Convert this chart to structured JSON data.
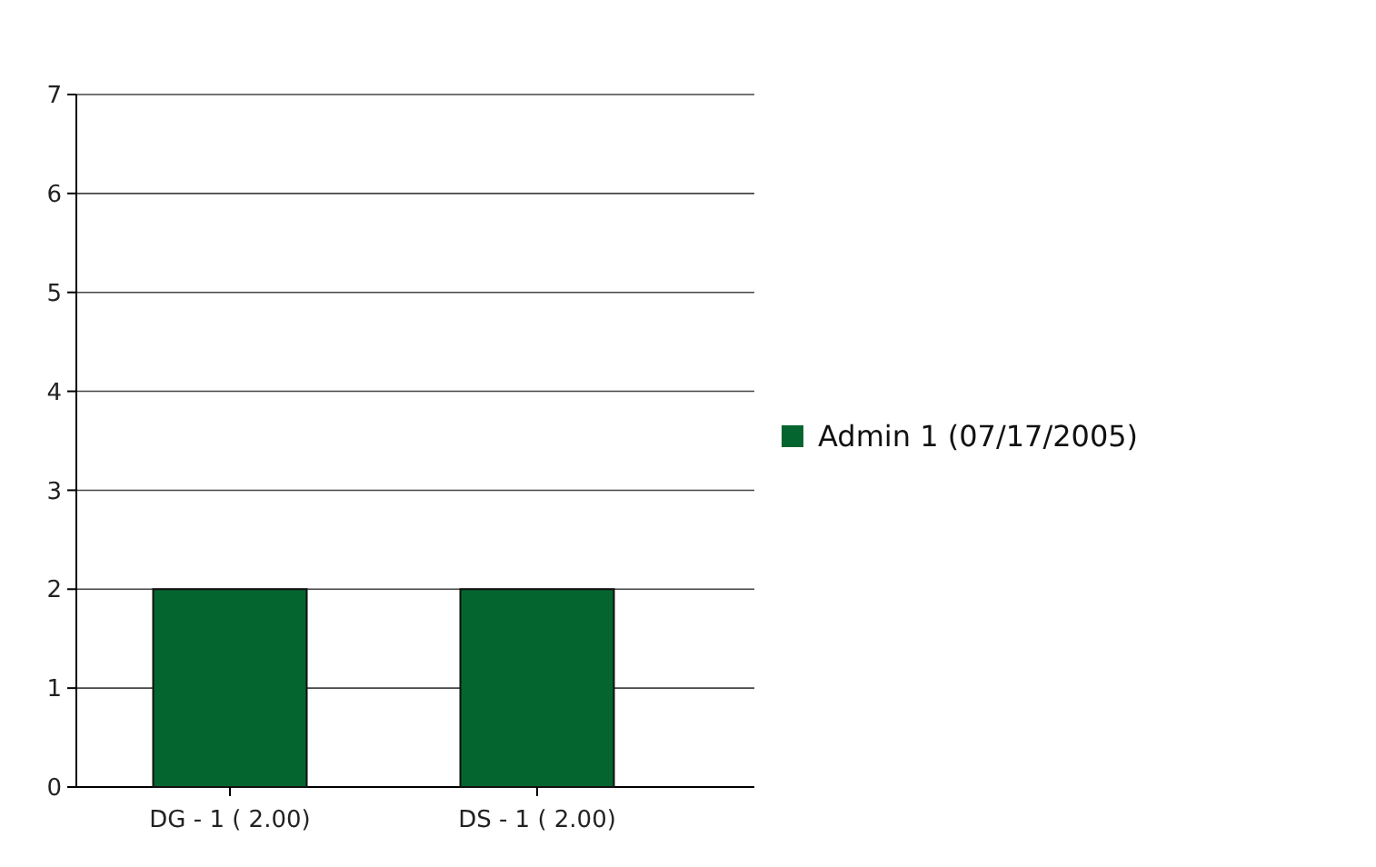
{
  "chart_data": {
    "type": "bar",
    "categories": [
      "DG - 1 ( 2.00)",
      "DS - 1 ( 2.00)"
    ],
    "series": [
      {
        "name": "Admin 1 (07/17/2005)",
        "color": "#04652f",
        "values": [
          2,
          2
        ]
      }
    ],
    "ylim": [
      0,
      7
    ],
    "yticks": [
      0,
      1,
      2,
      3,
      4,
      5,
      6,
      7
    ],
    "grid": "y",
    "legend": "right"
  }
}
